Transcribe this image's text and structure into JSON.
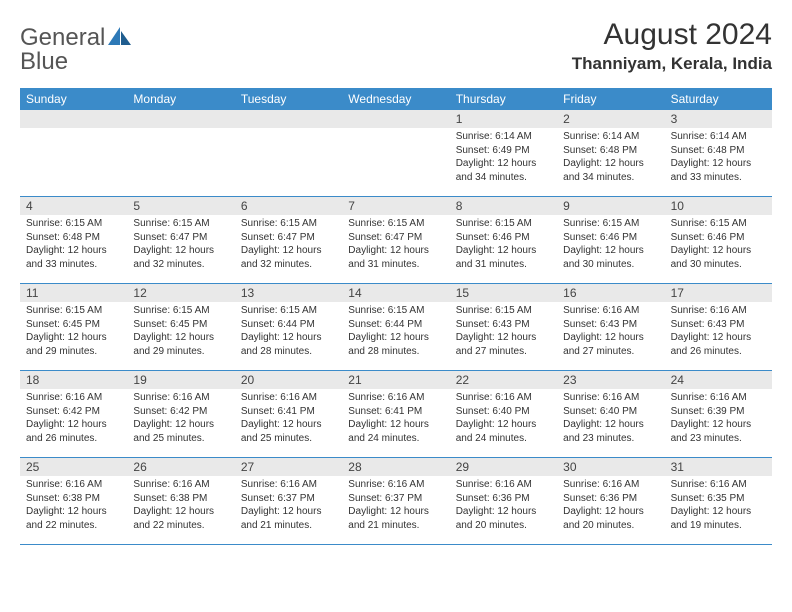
{
  "brand": {
    "text1": "General",
    "text2": "Blue"
  },
  "title": "August 2024",
  "location": "Thanniyam, Kerala, India",
  "day_names": [
    "Sunday",
    "Monday",
    "Tuesday",
    "Wednesday",
    "Thursday",
    "Friday",
    "Saturday"
  ],
  "colors": {
    "header_bg": "#3b8bc9",
    "header_text": "#ffffff",
    "daynum_bg": "#e9e9e9",
    "week_border": "#3b8bc9",
    "text": "#333333",
    "logo_gray": "#6a6a6a",
    "logo_blue": "#2d79b7"
  },
  "weeks": [
    [
      {
        "n": "",
        "sr": "",
        "ss": "",
        "dl": ""
      },
      {
        "n": "",
        "sr": "",
        "ss": "",
        "dl": ""
      },
      {
        "n": "",
        "sr": "",
        "ss": "",
        "dl": ""
      },
      {
        "n": "",
        "sr": "",
        "ss": "",
        "dl": ""
      },
      {
        "n": "1",
        "sr": "Sunrise: 6:14 AM",
        "ss": "Sunset: 6:49 PM",
        "dl": "Daylight: 12 hours and 34 minutes."
      },
      {
        "n": "2",
        "sr": "Sunrise: 6:14 AM",
        "ss": "Sunset: 6:48 PM",
        "dl": "Daylight: 12 hours and 34 minutes."
      },
      {
        "n": "3",
        "sr": "Sunrise: 6:14 AM",
        "ss": "Sunset: 6:48 PM",
        "dl": "Daylight: 12 hours and 33 minutes."
      }
    ],
    [
      {
        "n": "4",
        "sr": "Sunrise: 6:15 AM",
        "ss": "Sunset: 6:48 PM",
        "dl": "Daylight: 12 hours and 33 minutes."
      },
      {
        "n": "5",
        "sr": "Sunrise: 6:15 AM",
        "ss": "Sunset: 6:47 PM",
        "dl": "Daylight: 12 hours and 32 minutes."
      },
      {
        "n": "6",
        "sr": "Sunrise: 6:15 AM",
        "ss": "Sunset: 6:47 PM",
        "dl": "Daylight: 12 hours and 32 minutes."
      },
      {
        "n": "7",
        "sr": "Sunrise: 6:15 AM",
        "ss": "Sunset: 6:47 PM",
        "dl": "Daylight: 12 hours and 31 minutes."
      },
      {
        "n": "8",
        "sr": "Sunrise: 6:15 AM",
        "ss": "Sunset: 6:46 PM",
        "dl": "Daylight: 12 hours and 31 minutes."
      },
      {
        "n": "9",
        "sr": "Sunrise: 6:15 AM",
        "ss": "Sunset: 6:46 PM",
        "dl": "Daylight: 12 hours and 30 minutes."
      },
      {
        "n": "10",
        "sr": "Sunrise: 6:15 AM",
        "ss": "Sunset: 6:46 PM",
        "dl": "Daylight: 12 hours and 30 minutes."
      }
    ],
    [
      {
        "n": "11",
        "sr": "Sunrise: 6:15 AM",
        "ss": "Sunset: 6:45 PM",
        "dl": "Daylight: 12 hours and 29 minutes."
      },
      {
        "n": "12",
        "sr": "Sunrise: 6:15 AM",
        "ss": "Sunset: 6:45 PM",
        "dl": "Daylight: 12 hours and 29 minutes."
      },
      {
        "n": "13",
        "sr": "Sunrise: 6:15 AM",
        "ss": "Sunset: 6:44 PM",
        "dl": "Daylight: 12 hours and 28 minutes."
      },
      {
        "n": "14",
        "sr": "Sunrise: 6:15 AM",
        "ss": "Sunset: 6:44 PM",
        "dl": "Daylight: 12 hours and 28 minutes."
      },
      {
        "n": "15",
        "sr": "Sunrise: 6:15 AM",
        "ss": "Sunset: 6:43 PM",
        "dl": "Daylight: 12 hours and 27 minutes."
      },
      {
        "n": "16",
        "sr": "Sunrise: 6:16 AM",
        "ss": "Sunset: 6:43 PM",
        "dl": "Daylight: 12 hours and 27 minutes."
      },
      {
        "n": "17",
        "sr": "Sunrise: 6:16 AM",
        "ss": "Sunset: 6:43 PM",
        "dl": "Daylight: 12 hours and 26 minutes."
      }
    ],
    [
      {
        "n": "18",
        "sr": "Sunrise: 6:16 AM",
        "ss": "Sunset: 6:42 PM",
        "dl": "Daylight: 12 hours and 26 minutes."
      },
      {
        "n": "19",
        "sr": "Sunrise: 6:16 AM",
        "ss": "Sunset: 6:42 PM",
        "dl": "Daylight: 12 hours and 25 minutes."
      },
      {
        "n": "20",
        "sr": "Sunrise: 6:16 AM",
        "ss": "Sunset: 6:41 PM",
        "dl": "Daylight: 12 hours and 25 minutes."
      },
      {
        "n": "21",
        "sr": "Sunrise: 6:16 AM",
        "ss": "Sunset: 6:41 PM",
        "dl": "Daylight: 12 hours and 24 minutes."
      },
      {
        "n": "22",
        "sr": "Sunrise: 6:16 AM",
        "ss": "Sunset: 6:40 PM",
        "dl": "Daylight: 12 hours and 24 minutes."
      },
      {
        "n": "23",
        "sr": "Sunrise: 6:16 AM",
        "ss": "Sunset: 6:40 PM",
        "dl": "Daylight: 12 hours and 23 minutes."
      },
      {
        "n": "24",
        "sr": "Sunrise: 6:16 AM",
        "ss": "Sunset: 6:39 PM",
        "dl": "Daylight: 12 hours and 23 minutes."
      }
    ],
    [
      {
        "n": "25",
        "sr": "Sunrise: 6:16 AM",
        "ss": "Sunset: 6:38 PM",
        "dl": "Daylight: 12 hours and 22 minutes."
      },
      {
        "n": "26",
        "sr": "Sunrise: 6:16 AM",
        "ss": "Sunset: 6:38 PM",
        "dl": "Daylight: 12 hours and 22 minutes."
      },
      {
        "n": "27",
        "sr": "Sunrise: 6:16 AM",
        "ss": "Sunset: 6:37 PM",
        "dl": "Daylight: 12 hours and 21 minutes."
      },
      {
        "n": "28",
        "sr": "Sunrise: 6:16 AM",
        "ss": "Sunset: 6:37 PM",
        "dl": "Daylight: 12 hours and 21 minutes."
      },
      {
        "n": "29",
        "sr": "Sunrise: 6:16 AM",
        "ss": "Sunset: 6:36 PM",
        "dl": "Daylight: 12 hours and 20 minutes."
      },
      {
        "n": "30",
        "sr": "Sunrise: 6:16 AM",
        "ss": "Sunset: 6:36 PM",
        "dl": "Daylight: 12 hours and 20 minutes."
      },
      {
        "n": "31",
        "sr": "Sunrise: 6:16 AM",
        "ss": "Sunset: 6:35 PM",
        "dl": "Daylight: 12 hours and 19 minutes."
      }
    ]
  ]
}
